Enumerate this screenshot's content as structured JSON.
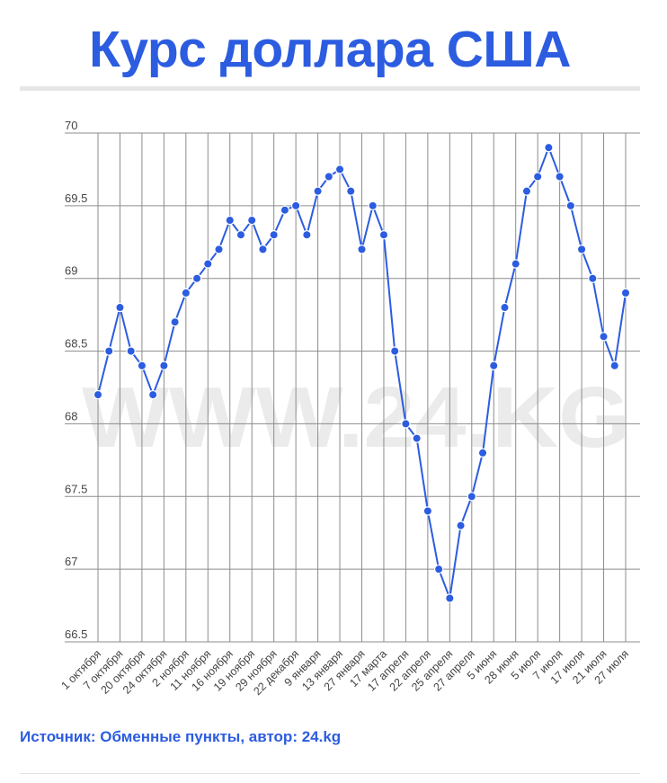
{
  "title": "Курс доллара США",
  "source": "Источник: Обменные пункты, автор: 24.kg",
  "watermark": "WWW.24.KG",
  "colors": {
    "accent": "#2c5ce0",
    "line": "#2c5ce0",
    "grid": "#8c8c8c",
    "watermark": "#ebebeb"
  },
  "chart_data": {
    "type": "line",
    "title": "",
    "xlabel": "",
    "ylabel": "",
    "ylim": [
      66.5,
      70
    ],
    "yticks": [
      "66.5",
      "67",
      "67.5",
      "68",
      "68.5",
      "69",
      "69.5",
      "70"
    ],
    "grid": true,
    "legend": "none",
    "x_tick_labels": [
      "1 октября",
      "7 октября",
      "20 октября",
      "24 октября",
      "2 ноября",
      "11 ноября",
      "16 ноября",
      "19 ноября",
      "29 ноября",
      "22 декабря",
      "9 января",
      "13 января",
      "27 января",
      "17 марта",
      "17 апреля",
      "22 апреля",
      "25 апреля",
      "27 апреля",
      "5 июня",
      "28 июня",
      "5 июля",
      "7 июля",
      "17 июля",
      "21 июля",
      "27 июля"
    ],
    "series": [
      {
        "values": [
          68.2,
          68.5,
          68.8,
          68.5,
          68.4,
          68.2,
          68.4,
          68.7,
          68.9,
          69.0,
          69.1,
          69.2,
          69.4,
          69.3,
          69.4,
          69.2,
          69.3,
          69.47,
          69.5,
          69.3,
          69.6,
          69.7,
          69.75,
          69.6,
          69.2,
          69.5,
          69.3,
          68.5,
          68.0,
          67.9,
          67.4,
          67.0,
          66.8,
          67.3,
          67.5,
          67.8,
          68.4,
          68.8,
          69.1,
          69.6,
          69.7,
          69.9,
          69.7,
          69.5,
          69.2,
          69.0,
          68.6,
          68.4,
          68.9
        ]
      }
    ]
  }
}
